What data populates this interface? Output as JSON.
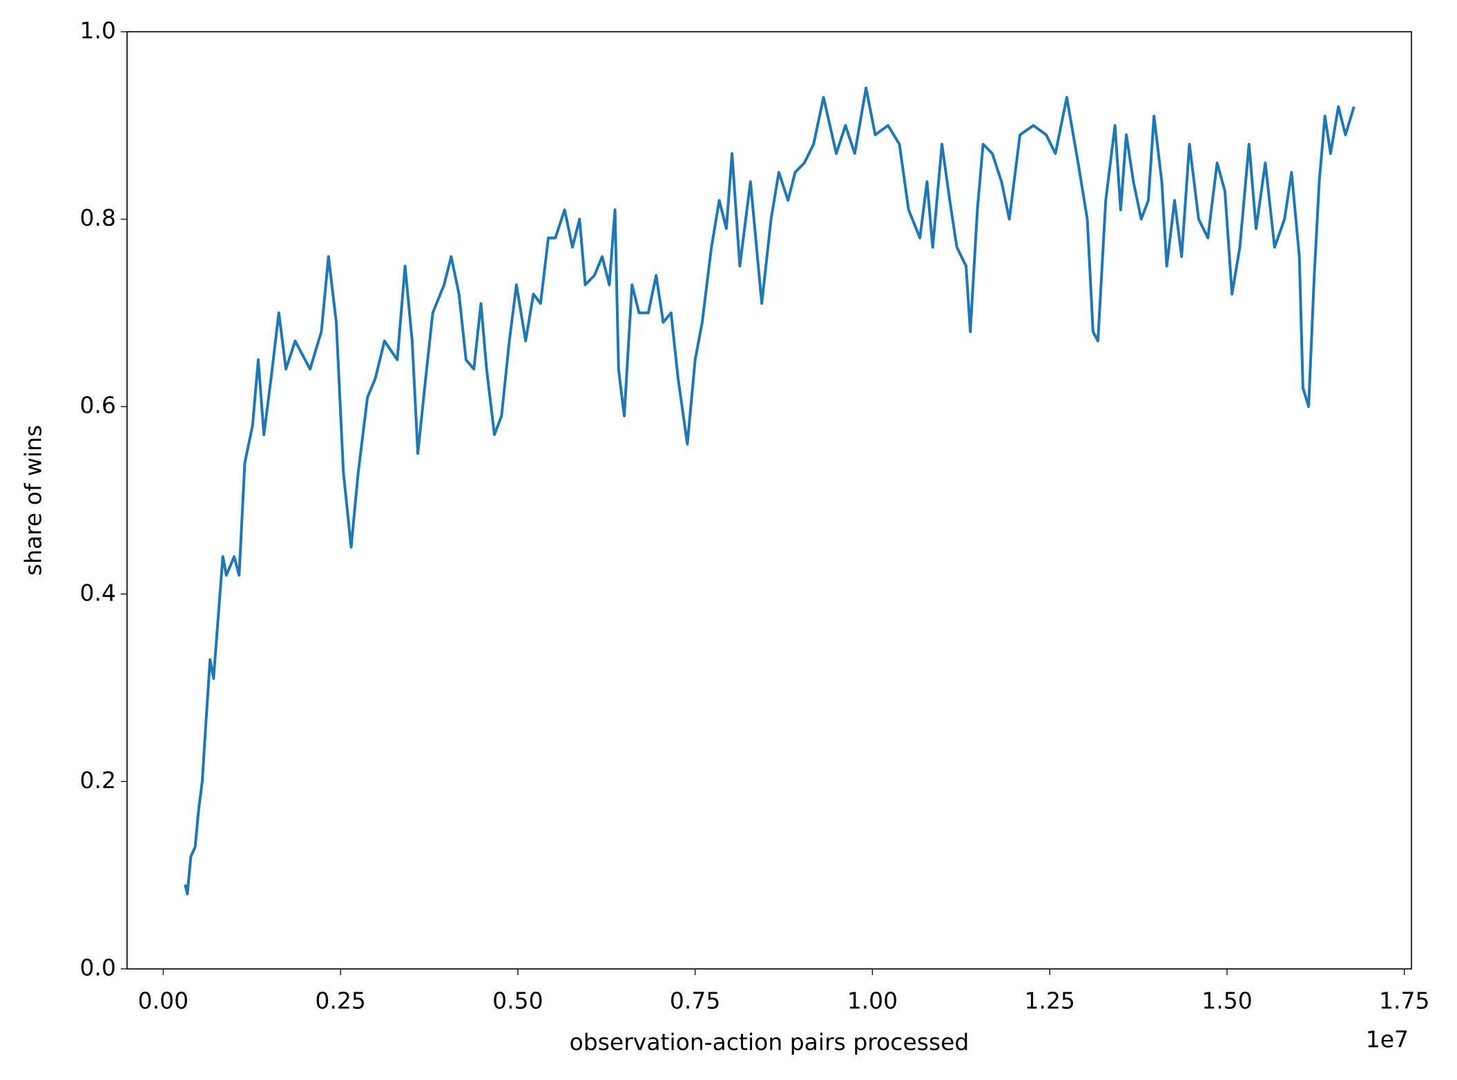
{
  "chart_data": {
    "type": "line",
    "x_label": "observation-action pairs processed",
    "y_label": "share of wins",
    "x_offset_label": "1e7",
    "xlim": [
      -0.051,
      1.76
    ],
    "ylim": [
      0,
      1
    ],
    "xticks": [
      {
        "value": 0,
        "label": "0.00"
      },
      {
        "value": 0.25,
        "label": "0.25"
      },
      {
        "value": 0.5,
        "label": "0.50"
      },
      {
        "value": 0.75,
        "label": "0.75"
      },
      {
        "value": 1,
        "label": "1.00"
      },
      {
        "value": 1.25,
        "label": "1.25"
      },
      {
        "value": 1.5,
        "label": "1.50"
      },
      {
        "value": 1.75,
        "label": "1.75"
      }
    ],
    "yticks": [
      {
        "value": 0,
        "label": "0.0"
      },
      {
        "value": 0.2,
        "label": "0.2"
      },
      {
        "value": 0.4,
        "label": "0.4"
      },
      {
        "value": 0.6,
        "label": "0.6"
      },
      {
        "value": 0.8,
        "label": "0.8"
      },
      {
        "value": 1,
        "label": "1.0"
      }
    ],
    "grid": false,
    "series": [
      {
        "color": "#1f77b4",
        "x": [
          0.031,
          0.034,
          0.039,
          0.045,
          0.05,
          0.055,
          0.06,
          0.066,
          0.071,
          0.076,
          0.084,
          0.089,
          0.1,
          0.107,
          0.115,
          0.126,
          0.134,
          0.142,
          0.152,
          0.163,
          0.173,
          0.186,
          0.207,
          0.223,
          0.233,
          0.244,
          0.254,
          0.265,
          0.275,
          0.288,
          0.299,
          0.312,
          0.33,
          0.341,
          0.351,
          0.359,
          0.37,
          0.38,
          0.396,
          0.406,
          0.417,
          0.427,
          0.438,
          0.448,
          0.456,
          0.467,
          0.477,
          0.488,
          0.498,
          0.511,
          0.522,
          0.532,
          0.543,
          0.553,
          0.566,
          0.577,
          0.587,
          0.595,
          0.608,
          0.619,
          0.629,
          0.637,
          0.642,
          0.65,
          0.661,
          0.671,
          0.684,
          0.695,
          0.705,
          0.716,
          0.726,
          0.739,
          0.75,
          0.76,
          0.773,
          0.784,
          0.794,
          0.802,
          0.813,
          0.828,
          0.844,
          0.857,
          0.868,
          0.881,
          0.891,
          0.904,
          0.917,
          0.931,
          0.949,
          0.962,
          0.975,
          0.991,
          1.004,
          1.022,
          1.038,
          1.051,
          1.067,
          1.077,
          1.085,
          1.098,
          1.109,
          1.119,
          1.132,
          1.138,
          1.148,
          1.156,
          1.169,
          1.182,
          1.193,
          1.208,
          1.227,
          1.245,
          1.258,
          1.274,
          1.29,
          1.303,
          1.311,
          1.318,
          1.329,
          1.342,
          1.35,
          1.358,
          1.368,
          1.379,
          1.389,
          1.397,
          1.408,
          1.415,
          1.426,
          1.436,
          1.447,
          1.46,
          1.473,
          1.486,
          1.497,
          1.507,
          1.518,
          1.531,
          1.541,
          1.554,
          1.567,
          1.581,
          1.591,
          1.602,
          1.607,
          1.615,
          1.623,
          1.63,
          1.638,
          1.646,
          1.657,
          1.667,
          1.679
        ],
        "values": [
          0.09,
          0.08,
          0.12,
          0.13,
          0.17,
          0.2,
          0.26,
          0.33,
          0.31,
          0.36,
          0.44,
          0.42,
          0.44,
          0.42,
          0.54,
          0.58,
          0.65,
          0.57,
          0.63,
          0.7,
          0.64,
          0.67,
          0.64,
          0.68,
          0.76,
          0.69,
          0.53,
          0.45,
          0.53,
          0.61,
          0.63,
          0.67,
          0.65,
          0.75,
          0.67,
          0.55,
          0.63,
          0.7,
          0.73,
          0.76,
          0.72,
          0.65,
          0.64,
          0.71,
          0.64,
          0.57,
          0.59,
          0.67,
          0.73,
          0.67,
          0.72,
          0.71,
          0.78,
          0.78,
          0.81,
          0.77,
          0.8,
          0.73,
          0.74,
          0.76,
          0.73,
          0.81,
          0.64,
          0.59,
          0.73,
          0.7,
          0.7,
          0.74,
          0.69,
          0.7,
          0.63,
          0.56,
          0.65,
          0.69,
          0.77,
          0.82,
          0.79,
          0.87,
          0.75,
          0.84,
          0.71,
          0.8,
          0.85,
          0.82,
          0.85,
          0.86,
          0.88,
          0.93,
          0.87,
          0.9,
          0.87,
          0.94,
          0.89,
          0.9,
          0.88,
          0.81,
          0.78,
          0.84,
          0.77,
          0.88,
          0.82,
          0.77,
          0.75,
          0.68,
          0.81,
          0.88,
          0.87,
          0.84,
          0.8,
          0.89,
          0.9,
          0.89,
          0.87,
          0.93,
          0.86,
          0.8,
          0.68,
          0.67,
          0.82,
          0.9,
          0.81,
          0.89,
          0.84,
          0.8,
          0.82,
          0.91,
          0.84,
          0.75,
          0.82,
          0.76,
          0.88,
          0.8,
          0.78,
          0.86,
          0.83,
          0.72,
          0.77,
          0.88,
          0.79,
          0.86,
          0.77,
          0.8,
          0.85,
          0.76,
          0.62,
          0.6,
          0.74,
          0.84,
          0.91,
          0.87,
          0.92,
          0.89,
          0.92
        ]
      }
    ]
  }
}
